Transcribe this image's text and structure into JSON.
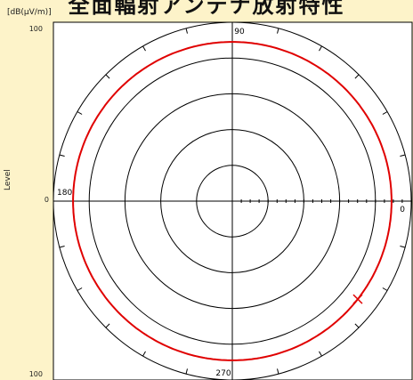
{
  "chart_data": {
    "type": "polar",
    "title": "全面輻射アンテナ放射特性",
    "unit_label": "[dB(μV/m)]",
    "ylabel": "Level",
    "level_ticks": [
      "100",
      "0",
      "100"
    ],
    "angle_labels": [
      {
        "angle": 90,
        "label": "90"
      },
      {
        "angle": 180,
        "label": "180"
      },
      {
        "angle": 270,
        "label": "270"
      },
      {
        "angle": 0,
        "label": "0"
      }
    ],
    "rings": 5,
    "radial_minor_ticks": 20,
    "series": [
      {
        "color": "#e00000",
        "angles_deg": [
          0,
          30,
          60,
          90,
          120,
          150,
          180,
          210,
          240,
          270,
          300,
          330
        ],
        "radius_fraction": [
          0.89,
          0.89,
          0.89,
          0.89,
          0.89,
          0.89,
          0.89,
          0.89,
          0.89,
          0.89,
          0.89,
          0.89
        ],
        "marker_angle_deg": 322
      }
    ]
  }
}
